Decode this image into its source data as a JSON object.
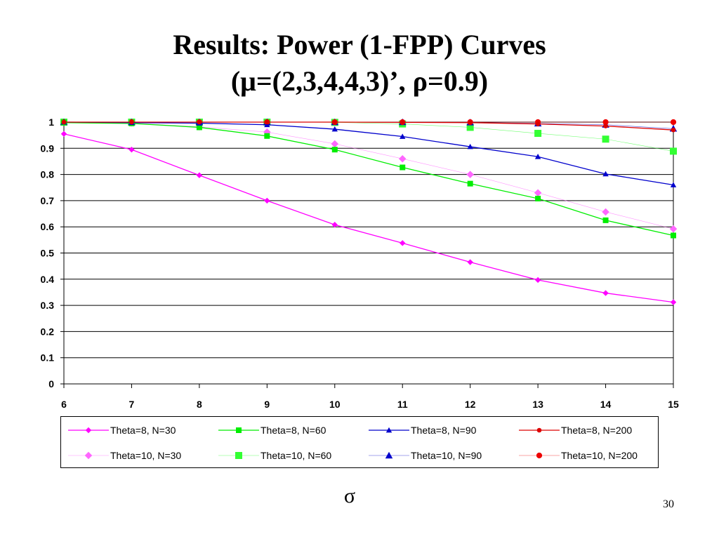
{
  "slide": {
    "title_line1": "Results: Power (1-FPP) Curves",
    "title_line2": "(μ=(2,3,4,4,3)’, ρ=0.9)",
    "page_number": "30"
  },
  "chart_data": {
    "type": "line",
    "title": "",
    "xlabel": "σ",
    "ylabel": "",
    "x": [
      6,
      7,
      8,
      9,
      10,
      11,
      12,
      13,
      14,
      15
    ],
    "xlim": [
      6,
      15
    ],
    "ylim": [
      0,
      1
    ],
    "yticks": [
      "0",
      "0.1",
      "0.2",
      "0.3",
      "0.4",
      "0.5",
      "0.6",
      "0.7",
      "0.8",
      "0.9",
      "1"
    ],
    "xticks": [
      "6",
      "7",
      "8",
      "9",
      "10",
      "11",
      "12",
      "13",
      "14",
      "15"
    ],
    "grid": "horizontal",
    "legend_position": "bottom",
    "series": [
      {
        "name": "Theta=8, N=30",
        "color": "#ff00ff",
        "marker": "diamond",
        "line": "solid",
        "values": [
          0.955,
          0.895,
          0.797,
          0.7,
          0.608,
          0.538,
          0.465,
          0.397,
          0.347,
          0.312
        ]
      },
      {
        "name": "Theta=8, N=60",
        "color": "#00ee00",
        "marker": "square",
        "line": "solid",
        "values": [
          0.998,
          0.995,
          0.98,
          0.947,
          0.895,
          0.827,
          0.765,
          0.708,
          0.625,
          0.567
        ]
      },
      {
        "name": "Theta=8, N=90",
        "color": "#0000cc",
        "marker": "triangle",
        "line": "solid",
        "values": [
          1.0,
          0.998,
          0.996,
          0.99,
          0.973,
          0.945,
          0.906,
          0.868,
          0.802,
          0.76
        ]
      },
      {
        "name": "Theta=8, N=200",
        "color": "#dd0000",
        "marker": "circle",
        "line": "solid",
        "values": [
          1.0,
          1.0,
          1.0,
          1.0,
          1.0,
          0.999,
          0.998,
          0.993,
          0.985,
          0.97
        ]
      },
      {
        "name": "Theta=10, N=30",
        "color": "#ff66ff",
        "marker": "diamond",
        "line": "faint",
        "values": [
          1.0,
          0.997,
          0.982,
          0.962,
          0.917,
          0.86,
          0.8,
          0.73,
          0.657,
          0.592
        ]
      },
      {
        "name": "Theta=10, N=60",
        "color": "#33ff33",
        "marker": "square",
        "line": "faint",
        "values": [
          1.0,
          1.0,
          1.0,
          1.0,
          0.999,
          0.993,
          0.98,
          0.957,
          0.935,
          0.889
        ]
      },
      {
        "name": "Theta=10, N=90",
        "color": "#0000cc",
        "marker": "triangle",
        "line": "faint",
        "values": [
          1.0,
          1.0,
          1.0,
          1.0,
          1.0,
          1.0,
          0.999,
          0.995,
          0.99,
          0.975
        ]
      },
      {
        "name": "Theta=10, N=200",
        "color": "#ee0000",
        "marker": "circle",
        "line": "faint",
        "values": [
          1.0,
          1.0,
          1.0,
          1.0,
          1.0,
          1.0,
          1.0,
          1.0,
          1.0,
          1.0
        ]
      }
    ]
  }
}
